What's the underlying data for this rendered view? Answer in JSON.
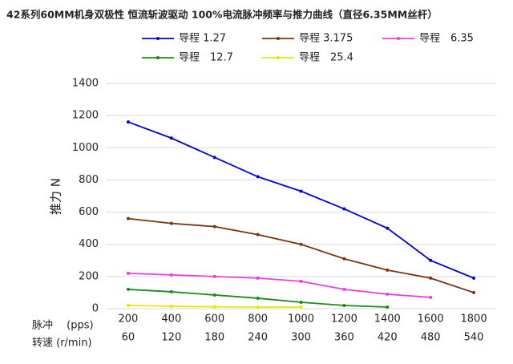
{
  "chart_data": {
    "type": "line",
    "title": "42系列60MM机身双极性 恒流斩波驱动 100%电流脉冲频率与推力曲线（直径6.35MM丝杆）",
    "y_label": "推力 N",
    "x_row_labels": [
      "脉冲　 (pps)",
      "转速 (r/min)"
    ],
    "categories": [
      "200",
      "400",
      "600",
      "800",
      "1000",
      "1200",
      "1400",
      "1600",
      "1800"
    ],
    "categories2": [
      "60",
      "120",
      "180",
      "240",
      "300",
      "360",
      "420",
      "480",
      "540"
    ],
    "ylim": [
      0,
      1400
    ],
    "yticks": [
      0,
      200,
      400,
      600,
      800,
      1000,
      1200,
      1400
    ],
    "grid": true,
    "legend": "top",
    "series": [
      {
        "name": "导程 1.27",
        "color": "#0000d8",
        "values": [
          1160,
          1060,
          940,
          820,
          730,
          620,
          500,
          300,
          190
        ]
      },
      {
        "name": "导程 3.175",
        "color": "#7b3210",
        "values": [
          560,
          530,
          510,
          460,
          400,
          310,
          240,
          190,
          100
        ]
      },
      {
        "name": "导程　6.35",
        "color": "#e83de8",
        "values": [
          220,
          210,
          200,
          190,
          170,
          120,
          90,
          70,
          null
        ]
      },
      {
        "name": "导程　12.7",
        "color": "#1a8a1a",
        "values": [
          120,
          105,
          85,
          65,
          40,
          20,
          10,
          null,
          null
        ]
      },
      {
        "name": "导程　25.4",
        "color": "#e8e800",
        "values": [
          20,
          15,
          12,
          10,
          10,
          null,
          null,
          null,
          null
        ]
      }
    ]
  }
}
